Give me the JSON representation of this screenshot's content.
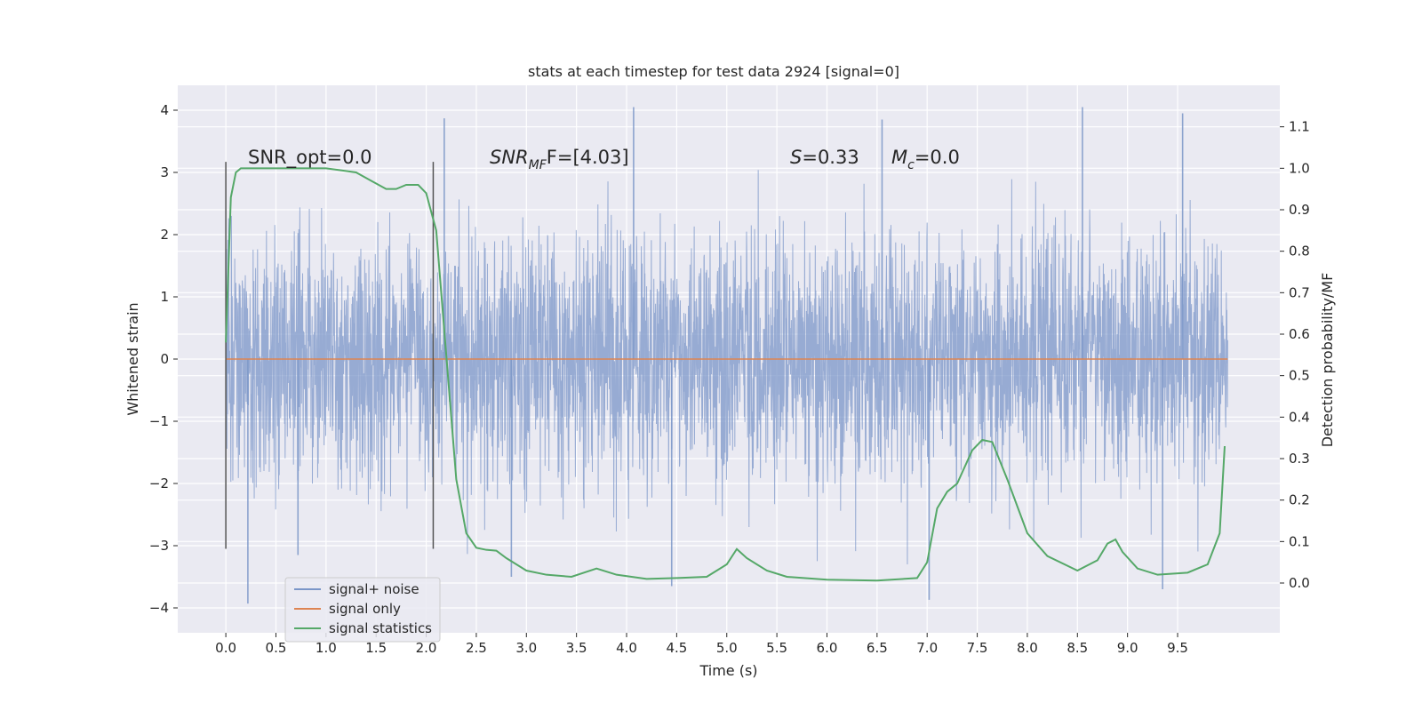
{
  "chart_data": {
    "type": "line",
    "title": "stats at each timestep for test data 2924 [signal=0]",
    "xlabel": "Time (s)",
    "ylabel": "Whitened strain",
    "y2label": "Detection probability/MF",
    "xlim": [
      -0.48,
      10.52
    ],
    "ylim": [
      -4.4,
      4.4
    ],
    "y2lim": [
      -0.12,
      1.2
    ],
    "xticks": [
      0.0,
      0.5,
      1.0,
      1.5,
      2.0,
      2.5,
      3.0,
      3.5,
      4.0,
      4.5,
      5.0,
      5.5,
      6.0,
      6.5,
      7.0,
      7.5,
      8.0,
      8.5,
      9.0,
      9.5
    ],
    "xtick_labels": [
      "0.0",
      "0.5",
      "1.0",
      "1.5",
      "2.0",
      "2.5",
      "3.0",
      "3.5",
      "4.0",
      "4.5",
      "5.0",
      "5.5",
      "6.0",
      "6.5",
      "7.0",
      "7.5",
      "8.0",
      "8.5",
      "9.0",
      "9.5"
    ],
    "yticks": [
      4,
      3,
      2,
      1,
      0,
      -1,
      -2,
      -3,
      -4
    ],
    "ytick_labels": [
      "4",
      "3",
      "2",
      "1",
      "0",
      "−1",
      "−2",
      "−3",
      "−4"
    ],
    "y2ticks": [
      1.1,
      1.0,
      0.9,
      0.8,
      0.7,
      0.6,
      0.5,
      0.4,
      0.3,
      0.2,
      0.1,
      0.0
    ],
    "y2tick_labels": [
      "1.1",
      "1.0",
      "0.9",
      "0.8",
      "0.7",
      "0.6",
      "0.5",
      "0.4",
      "0.3",
      "0.2",
      "0.1",
      "0.0"
    ],
    "grid": true,
    "legend_position": "lower-left",
    "colors": {
      "noise": "#7b96c8",
      "signal_only": "#dd8452",
      "statistics": "#55a868",
      "markers": "#555555",
      "background": "#eaeaf2"
    },
    "series": [
      {
        "name": "signal+ noise",
        "kind": "whitened strain time series (sample rate 2048 Hz, t 0.0 to 10.0 s)",
        "noise_rms": 1.0,
        "typical_envelope": [
          -2.0,
          2.3
        ],
        "extreme_peaks": [
          {
            "x": 2.18,
            "y": 3.87
          },
          {
            "x": 4.07,
            "y": 4.05
          },
          {
            "x": 6.55,
            "y": 3.85
          },
          {
            "x": 8.55,
            "y": 4.05
          },
          {
            "x": 9.55,
            "y": 3.95
          },
          {
            "x": 0.22,
            "y": -3.93
          },
          {
            "x": 7.02,
            "y": -3.87
          },
          {
            "x": 9.35,
            "y": -3.7
          },
          {
            "x": 4.45,
            "y": -3.65
          },
          {
            "x": 2.85,
            "y": -3.5
          },
          {
            "x": 0.72,
            "y": -3.15
          }
        ]
      },
      {
        "name": "signal only",
        "x": [
          0.0,
          10.0
        ],
        "y": [
          0.0,
          0.0
        ]
      },
      {
        "name": "signal statistics",
        "axis": "right",
        "x": [
          0.0,
          0.05,
          0.1,
          0.15,
          0.25,
          0.5,
          1.0,
          1.3,
          1.45,
          1.6,
          1.7,
          1.8,
          1.92,
          2.0,
          2.1,
          2.2,
          2.3,
          2.4,
          2.5,
          2.6,
          2.7,
          2.8,
          3.0,
          3.2,
          3.45,
          3.7,
          3.9,
          4.2,
          4.5,
          4.8,
          5.0,
          5.1,
          5.2,
          5.4,
          5.6,
          6.0,
          6.5,
          6.9,
          7.0,
          7.1,
          7.2,
          7.3,
          7.45,
          7.55,
          7.65,
          7.8,
          8.0,
          8.2,
          8.5,
          8.7,
          8.8,
          8.88,
          8.95,
          9.1,
          9.3,
          9.6,
          9.8,
          9.92,
          9.97
        ],
        "y": [
          0.58,
          0.93,
          0.99,
          1.0,
          1.0,
          1.0,
          1.0,
          0.99,
          0.97,
          0.95,
          0.95,
          0.96,
          0.96,
          0.94,
          0.85,
          0.55,
          0.25,
          0.12,
          0.085,
          0.08,
          0.078,
          0.06,
          0.03,
          0.02,
          0.015,
          0.035,
          0.02,
          0.01,
          0.012,
          0.015,
          0.045,
          0.082,
          0.06,
          0.03,
          0.015,
          0.008,
          0.006,
          0.012,
          0.05,
          0.18,
          0.22,
          0.24,
          0.32,
          0.345,
          0.34,
          0.25,
          0.12,
          0.065,
          0.03,
          0.055,
          0.095,
          0.105,
          0.075,
          0.035,
          0.02,
          0.025,
          0.045,
          0.12,
          0.33
        ]
      }
    ],
    "vertical_markers": [
      {
        "x": 0.0,
        "y_from": -3.05,
        "y_to": 3.17
      },
      {
        "x": 2.07,
        "y_from": -3.05,
        "y_to": 3.17
      }
    ],
    "annotations": [
      {
        "text": "SNR_opt=0.0",
        "x": 0.2,
        "y": 3.2
      },
      {
        "text_main": "SNR",
        "text_sub": "MF",
        "text_rest": "F=[4.03]",
        "x": 2.6,
        "y": 3.2
      },
      {
        "text_main": "S",
        "text_rest": "=0.33",
        "x": 5.6,
        "y": 3.2
      },
      {
        "text_main": "M",
        "text_sub": "c",
        "text_rest": "=0.0",
        "x": 6.6,
        "y": 3.2
      }
    ]
  }
}
